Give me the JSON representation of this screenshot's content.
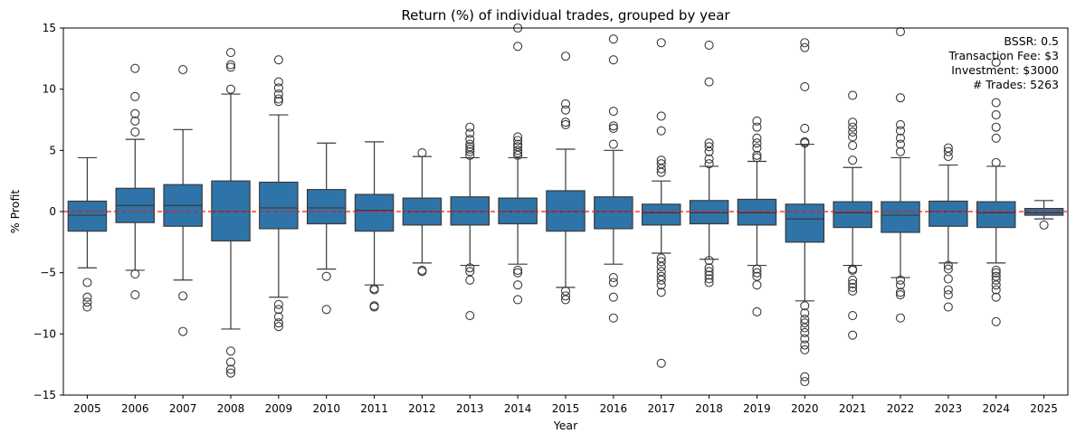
{
  "chart_data": {
    "type": "box",
    "title": "Return (%) of individual trades, grouped by year",
    "xlabel": "Year",
    "ylabel": "% Profit",
    "ylim": [
      -15,
      15
    ],
    "yticks": [
      -15,
      -10,
      -5,
      0,
      5,
      10,
      15
    ],
    "yticks_labels": [
      "−15",
      "−10",
      "−5",
      "0",
      "5",
      "10",
      "15"
    ],
    "reference_line": {
      "y": 0,
      "color": "#e31a1c",
      "style": "dashed"
    },
    "box_color": "#2f74a8",
    "line_color": "#3a3a3a",
    "annotations": [
      "BSSR: 0.5",
      "Transaction Fee: $3",
      "Investment: $3000",
      "# Trades: 5263"
    ],
    "annotation_placement": "top-right",
    "categories": [
      "2005",
      "2006",
      "2007",
      "2008",
      "2009",
      "2010",
      "2011",
      "2012",
      "2013",
      "2014",
      "2015",
      "2016",
      "2017",
      "2018",
      "2019",
      "2020",
      "2021",
      "2022",
      "2023",
      "2024",
      "2025"
    ],
    "boxes": [
      {
        "year": "2005",
        "whislo": -4.6,
        "q1": -1.6,
        "med": -0.3,
        "q3": 0.85,
        "whishi": 4.4,
        "fliers": [
          -5.8,
          -7.0,
          -7.4,
          -7.8
        ]
      },
      {
        "year": "2006",
        "whislo": -4.8,
        "q1": -0.9,
        "med": 0.5,
        "q3": 1.9,
        "whishi": 5.9,
        "fliers": [
          -5.1,
          -6.8,
          6.5,
          7.4,
          8.0,
          9.4,
          11.7
        ]
      },
      {
        "year": "2007",
        "whislo": -5.6,
        "q1": -1.2,
        "med": 0.5,
        "q3": 2.2,
        "whishi": 6.7,
        "fliers": [
          -6.9,
          -9.8,
          11.6
        ]
      },
      {
        "year": "2008",
        "whislo": -9.6,
        "q1": -2.4,
        "med": 0.0,
        "q3": 2.5,
        "whishi": 9.6,
        "fliers": [
          -11.4,
          -12.3,
          -12.9,
          -13.2,
          10.0,
          11.8,
          12.0,
          13.0
        ]
      },
      {
        "year": "2009",
        "whislo": -7.0,
        "q1": -1.4,
        "med": 0.3,
        "q3": 2.4,
        "whishi": 7.9,
        "fliers": [
          -7.6,
          -8.0,
          -8.6,
          -9.1,
          -9.4,
          9.0,
          9.2,
          9.6,
          10.1,
          10.6,
          12.4
        ]
      },
      {
        "year": "2010",
        "whislo": -4.7,
        "q1": -1.0,
        "med": 0.3,
        "q3": 1.8,
        "whishi": 5.6,
        "fliers": [
          -5.3,
          -8.0
        ]
      },
      {
        "year": "2011",
        "whislo": -6.0,
        "q1": -1.6,
        "med": 0.1,
        "q3": 1.4,
        "whishi": 5.7,
        "fliers": [
          -6.3,
          -6.4,
          -7.7,
          -7.8
        ]
      },
      {
        "year": "2012",
        "whislo": -4.2,
        "q1": -1.1,
        "med": 0.0,
        "q3": 1.1,
        "whishi": 4.5,
        "fliers": [
          -4.8,
          -4.9,
          4.8
        ]
      },
      {
        "year": "2013",
        "whislo": -4.4,
        "q1": -1.1,
        "med": 0.0,
        "q3": 1.2,
        "whishi": 4.4,
        "fliers": [
          -4.6,
          -4.9,
          -5.6,
          -8.5,
          4.6,
          4.9,
          5.1,
          5.3,
          5.5,
          5.9,
          6.4,
          6.9
        ]
      },
      {
        "year": "2014",
        "whislo": -4.3,
        "q1": -1.0,
        "med": 0.0,
        "q3": 1.1,
        "whishi": 4.4,
        "fliers": [
          -4.8,
          -5.0,
          -6.0,
          -7.2,
          4.6,
          4.8,
          5.0,
          5.3,
          5.5,
          5.8,
          6.1,
          13.5,
          15.0
        ]
      },
      {
        "year": "2015",
        "whislo": -6.2,
        "q1": -1.6,
        "med": 0.0,
        "q3": 1.7,
        "whishi": 5.1,
        "fliers": [
          -6.5,
          -6.9,
          -7.2,
          7.1,
          7.3,
          8.3,
          8.8,
          12.7
        ]
      },
      {
        "year": "2016",
        "whislo": -4.3,
        "q1": -1.4,
        "med": 0.0,
        "q3": 1.2,
        "whishi": 5.0,
        "fliers": [
          -5.4,
          -5.8,
          -7.0,
          -8.7,
          5.5,
          6.8,
          7.0,
          8.2,
          12.4,
          14.1
        ]
      },
      {
        "year": "2017",
        "whislo": -3.4,
        "q1": -1.1,
        "med": -0.1,
        "q3": 0.6,
        "whishi": 2.5,
        "fliers": [
          -3.8,
          -4.1,
          -4.5,
          -4.9,
          -5.3,
          -5.6,
          -6.0,
          -6.6,
          -12.4,
          3.2,
          3.5,
          3.9,
          4.2,
          6.6,
          7.8,
          13.8
        ]
      },
      {
        "year": "2018",
        "whislo": -3.9,
        "q1": -1.0,
        "med": -0.1,
        "q3": 0.9,
        "whishi": 3.7,
        "fliers": [
          -4.0,
          -4.6,
          -4.9,
          -5.2,
          -5.5,
          -5.8,
          3.9,
          4.3,
          4.9,
          5.3,
          5.6,
          10.6,
          13.6
        ]
      },
      {
        "year": "2019",
        "whislo": -4.4,
        "q1": -1.1,
        "med": -0.1,
        "q3": 1.0,
        "whishi": 4.1,
        "fliers": [
          -4.7,
          -5.0,
          -5.3,
          -6.0,
          -8.2,
          4.4,
          4.6,
          5.2,
          5.6,
          6.0,
          6.9,
          7.4
        ]
      },
      {
        "year": "2020",
        "whislo": -7.3,
        "q1": -2.5,
        "med": -0.6,
        "q3": 0.6,
        "whishi": 5.5,
        "fliers": [
          -7.7,
          -8.3,
          -8.8,
          -9.1,
          -9.5,
          -9.9,
          -10.4,
          -10.9,
          -11.3,
          -13.5,
          -13.9,
          5.6,
          5.7,
          6.8,
          10.2,
          13.4,
          13.8
        ]
      },
      {
        "year": "2021",
        "whislo": -4.4,
        "q1": -1.3,
        "med": -0.1,
        "q3": 0.8,
        "whishi": 3.6,
        "fliers": [
          -4.7,
          -4.8,
          -5.6,
          -5.9,
          -6.2,
          -6.5,
          -8.5,
          -10.1,
          4.2,
          5.4,
          6.1,
          6.5,
          6.9,
          7.3,
          9.5
        ]
      },
      {
        "year": "2022",
        "whislo": -5.4,
        "q1": -1.7,
        "med": -0.3,
        "q3": 0.8,
        "whishi": 4.4,
        "fliers": [
          -5.6,
          -6.0,
          -6.6,
          -6.8,
          -8.7,
          4.9,
          5.5,
          6.0,
          6.6,
          7.1,
          9.3,
          14.7
        ]
      },
      {
        "year": "2023",
        "whislo": -4.2,
        "q1": -1.2,
        "med": 0.0,
        "q3": 0.85,
        "whishi": 3.8,
        "fliers": [
          -4.4,
          -4.7,
          -5.5,
          -6.4,
          -6.8,
          -7.8,
          4.5,
          4.9,
          5.2
        ]
      },
      {
        "year": "2024",
        "whislo": -4.2,
        "q1": -1.3,
        "med": -0.1,
        "q3": 0.8,
        "whishi": 3.7,
        "fliers": [
          -4.8,
          -5.0,
          -5.3,
          -5.6,
          -6.0,
          -6.4,
          -7.0,
          -9.0,
          4.0,
          6.0,
          6.9,
          7.9,
          8.9,
          12.2
        ]
      },
      {
        "year": "2025",
        "whislo": -0.6,
        "q1": -0.3,
        "med": -0.1,
        "q3": 0.25,
        "whishi": 0.9,
        "fliers": [
          -1.1
        ]
      }
    ]
  }
}
